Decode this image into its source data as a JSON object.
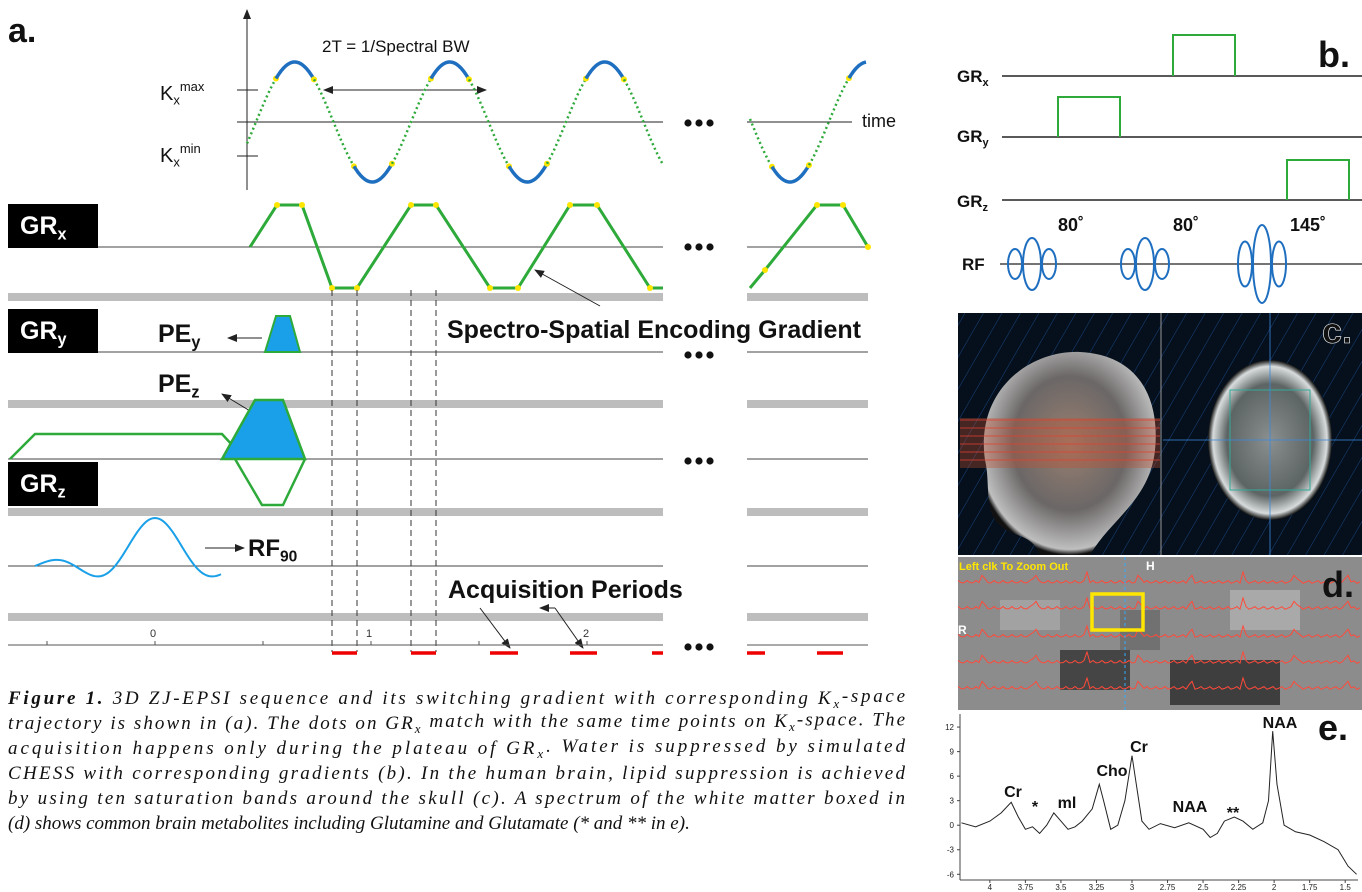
{
  "panel_a": {
    "label": "a.",
    "period_label": "2T = 1/Spectral BW",
    "kx_max": {
      "text": "K",
      "sub": "x",
      "sup": "max"
    },
    "kx_min": {
      "text": "K",
      "sub": "x",
      "sup": "min"
    },
    "time_label": "time",
    "gradients": [
      {
        "text": "GR",
        "sub": "x"
      },
      {
        "text": "GR",
        "sub": "y"
      },
      {
        "text": "GR",
        "sub": "z"
      }
    ],
    "pe_y": {
      "text": "PE",
      "sub": "y"
    },
    "pe_z": {
      "text": "PE",
      "sub": "z"
    },
    "rf": {
      "text": "RF",
      "sub": "90"
    },
    "encoding_label": "Spectro-Spatial Encoding Gradient",
    "acquisition_label": "Acquisition Periods",
    "timeline_ticks": [
      0,
      1,
      2
    ]
  },
  "panel_b": {
    "label": "b.",
    "channels": [
      {
        "text": "GR",
        "sub": "x"
      },
      {
        "text": "GR",
        "sub": "y"
      },
      {
        "text": "GR",
        "sub": "z"
      }
    ],
    "rf": "RF",
    "flip_angles": [
      "80˚",
      "80˚",
      "145˚"
    ]
  },
  "panel_c": {
    "label": "c."
  },
  "panel_d": {
    "label": "d.",
    "zoom_hint": "Left clk To Zoom Out",
    "orientation_labels": [
      "H",
      "R"
    ]
  },
  "panel_e": {
    "label": "e.",
    "type": "line",
    "x": [
      4.2,
      4.1,
      4.0,
      3.92,
      3.85,
      3.8,
      3.75,
      3.7,
      3.65,
      3.6,
      3.55,
      3.5,
      3.45,
      3.4,
      3.35,
      3.28,
      3.23,
      3.2,
      3.15,
      3.1,
      3.05,
      3.0,
      2.97,
      2.93,
      2.88,
      2.8,
      2.7,
      2.6,
      2.5,
      2.45,
      2.4,
      2.35,
      2.28,
      2.22,
      2.15,
      2.08,
      2.04,
      2.01,
      1.98,
      1.93,
      1.85,
      1.75,
      1.65,
      1.55,
      1.48,
      1.42
    ],
    "values": [
      0.3,
      -0.2,
      0.5,
      1.5,
      2.8,
      1.0,
      -0.5,
      -0.2,
      -1.0,
      0.0,
      1.5,
      0.5,
      -0.5,
      -0.2,
      0.5,
      2.0,
      5.0,
      3.0,
      -0.5,
      0.0,
      3.0,
      8.5,
      5.0,
      0.5,
      -0.5,
      0.2,
      -0.3,
      0.3,
      -0.5,
      -1.5,
      -1.0,
      0.5,
      1.0,
      0.5,
      -0.5,
      0.3,
      3.0,
      11.5,
      5.0,
      0.0,
      -0.8,
      -1.2,
      -2.0,
      -3.0,
      -5.0,
      -6.0
    ],
    "color": "#222222",
    "xlim": [
      4.21,
      1.41
    ],
    "ylim": [
      -6.7,
      13.6
    ],
    "xticks": [
      4,
      3.75,
      3.5,
      3.25,
      3,
      2.75,
      2.5,
      2.25,
      2,
      1.75,
      1.5
    ],
    "yticks": [
      12,
      9,
      6,
      3,
      0,
      -3,
      -6
    ],
    "peak_labels": [
      "Cr",
      "*",
      "ml",
      "Cho",
      "Cr",
      "NAA",
      "**",
      "NAA"
    ]
  },
  "caption": {
    "lines": [
      [
        {
          "bold": "Figure 1."
        },
        " 3D ZJ-EPSI sequence and its switching gradient with corresponding K",
        {
          "sub": "x"
        },
        "-space"
      ],
      [
        "trajectory is shown in (a). The dots on GR",
        {
          "sub": "x"
        },
        " match with the same time points on K",
        {
          "sub": "x"
        },
        "-space. The"
      ],
      [
        "acquisition happens only during the plateau of GR",
        {
          "sub": "x"
        },
        ". Water is suppressed by simulated"
      ],
      [
        "CHESS with corresponding gradients (b). In the human brain, lipid suppression is achieved"
      ],
      [
        "by using ten saturation bands around the skull (c). A spectrum of the white matter boxed in"
      ],
      [
        "(d) shows common brain metabolites including Glutamine and Glutamate (* and ** in e)."
      ]
    ]
  }
}
